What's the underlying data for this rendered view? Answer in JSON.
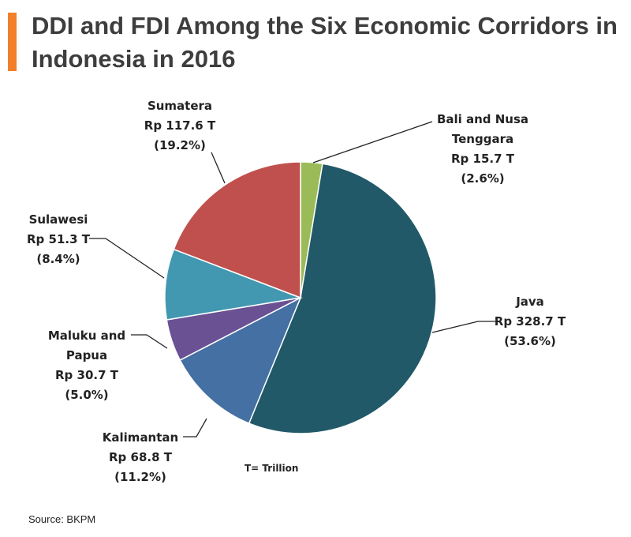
{
  "title": "DDI and FDI Among the Six Economic Corridors in Indonesia in 2016",
  "source": "Source: BKPM",
  "chart_data": {
    "type": "pie",
    "title": "DDI and FDI Among the Six Economic Corridors in Indonesia in 2016",
    "unit_note": "T= Trillion",
    "start": "top",
    "direction": "clockwise",
    "slices": [
      {
        "name": "Bali and Nusa Tenggara",
        "label_lines": [
          "Bali and Nusa",
          "Tenggara",
          "Rp 15.7 T",
          "(2.6%)"
        ],
        "value": 15.7,
        "percent": 2.6,
        "color": "#9BBB59"
      },
      {
        "name": "Java",
        "label_lines": [
          "Java",
          "Rp 328.7 T",
          "(53.6%)"
        ],
        "value": 328.7,
        "percent": 53.6,
        "color": "#215968"
      },
      {
        "name": "Kalimantan",
        "label_lines": [
          "Kalimantan",
          "Rp 68.8 T",
          "(11.2%)"
        ],
        "value": 68.8,
        "percent": 11.2,
        "color": "#4470A3"
      },
      {
        "name": "Maluku and Papua",
        "label_lines": [
          "Maluku and",
          "Papua",
          "Rp 30.7 T",
          "(5.0%)"
        ],
        "value": 30.7,
        "percent": 5.0,
        "color": "#6A5194"
      },
      {
        "name": "Sulawesi",
        "label_lines": [
          "Sulawesi",
          "Rp 51.3 T",
          "(8.4%)"
        ],
        "value": 51.3,
        "percent": 8.4,
        "color": "#4298B0"
      },
      {
        "name": "Sumatera",
        "label_lines": [
          "Sumatera",
          "Rp 117.6 T",
          "(19.2%)"
        ],
        "value": 117.6,
        "percent": 19.2,
        "color": "#C0504D"
      }
    ]
  }
}
